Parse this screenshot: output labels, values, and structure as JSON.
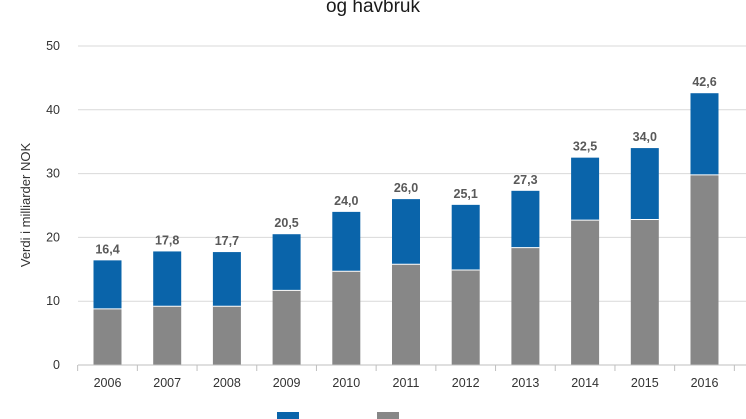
{
  "chart_data": {
    "type": "bar",
    "title": "og havbruk",
    "ylabel": "Verdi i milliarder NOK",
    "xlabel": "",
    "ylim": [
      0,
      50
    ],
    "yticks": [
      0,
      10,
      20,
      30,
      40,
      50
    ],
    "grid": true,
    "stacked": true,
    "categories": [
      "2006",
      "2007",
      "2008",
      "2009",
      "2010",
      "2011",
      "2012",
      "2013",
      "2014",
      "2015",
      "2016"
    ],
    "series": [
      {
        "color": "#878787",
        "values": [
          8.8,
          9.2,
          9.2,
          11.7,
          14.7,
          15.8,
          14.9,
          18.4,
          22.7,
          22.8,
          29.8
        ]
      },
      {
        "color": "#0a64aa",
        "values": [
          7.6,
          8.6,
          8.5,
          8.8,
          9.3,
          10.2,
          10.2,
          8.9,
          9.8,
          11.2,
          12.8
        ]
      }
    ],
    "totals": [
      "16,4",
      "17,8",
      "17,7",
      "20,5",
      "24,0",
      "26,0",
      "25,1",
      "27,3",
      "32,5",
      "34,0",
      "42,6"
    ],
    "legend_position": "bottom"
  }
}
